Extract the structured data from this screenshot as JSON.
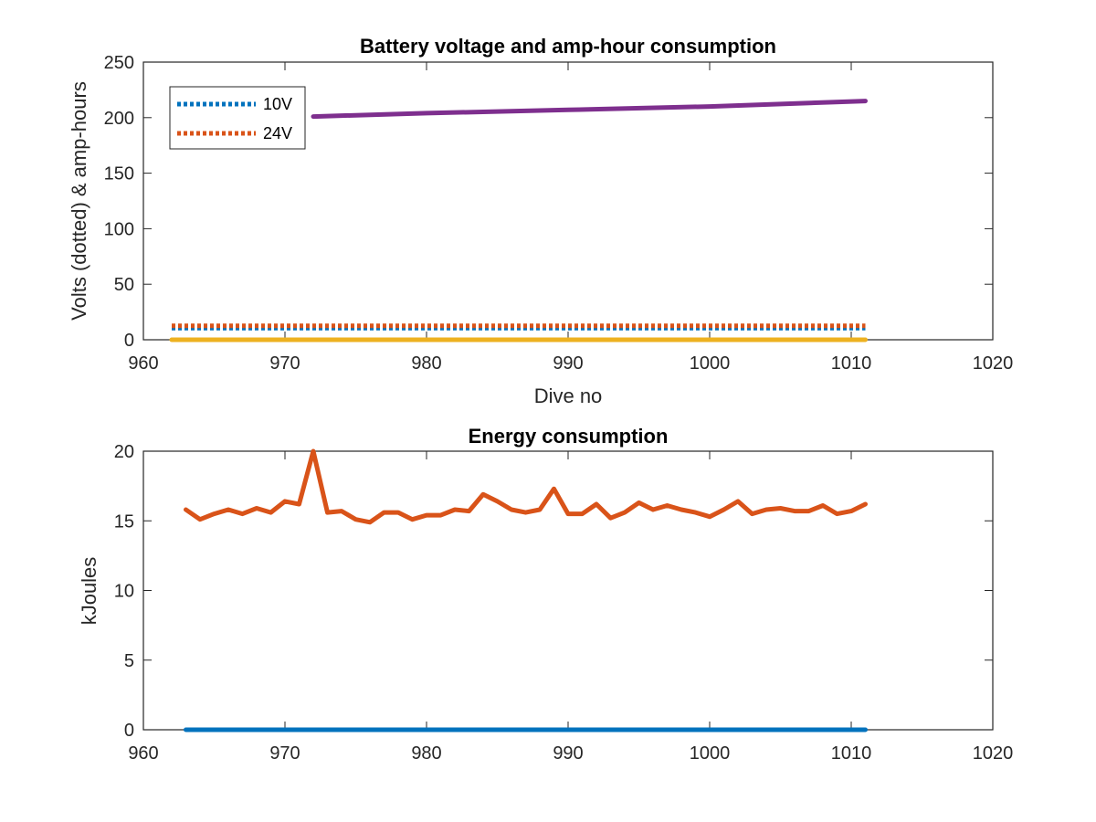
{
  "chart_data": [
    {
      "type": "line",
      "title": "Battery voltage and amp-hour consumption",
      "xlabel": "Dive no",
      "ylabel": "Volts (dotted) & amp-hours",
      "xlim": [
        960,
        1020
      ],
      "ylim": [
        0,
        250
      ],
      "xticks": [
        "960",
        "970",
        "980",
        "990",
        "1000",
        "1010",
        "1020"
      ],
      "yticks": [
        "0",
        "50",
        "100",
        "150",
        "200",
        "250"
      ],
      "grid": false,
      "legend_position": "top-left",
      "legend": [
        "10V",
        "24V"
      ],
      "series": [
        {
          "name": "10V",
          "style": "dotted",
          "color": "#0072BD",
          "x": [
            962,
            970,
            980,
            990,
            1000,
            1011
          ],
          "y": [
            10.5,
            10.5,
            10.5,
            10.5,
            10.5,
            10.5
          ]
        },
        {
          "name": "24V",
          "style": "dotted",
          "color": "#D95319",
          "x": [
            962,
            970,
            980,
            990,
            1000,
            1011
          ],
          "y": [
            12.5,
            12.5,
            12.5,
            12.5,
            12.5,
            12.5
          ]
        },
        {
          "style": "solid",
          "color": "#EDB120",
          "x": [
            962,
            1011
          ],
          "y": [
            0,
            0
          ]
        },
        {
          "style": "solid",
          "color": "#7E2F8E",
          "x": [
            972,
            980,
            990,
            1000,
            1011
          ],
          "y": [
            201,
            204,
            207,
            210,
            215
          ]
        }
      ]
    },
    {
      "type": "line",
      "title": "Energy consumption",
      "xlabel": "",
      "ylabel": "kJoules",
      "xlim": [
        960,
        1020
      ],
      "ylim": [
        0,
        20
      ],
      "xticks": [
        "960",
        "970",
        "980",
        "990",
        "1000",
        "1010",
        "1020"
      ],
      "yticks": [
        "0",
        "5",
        "10",
        "15",
        "20"
      ],
      "grid": false,
      "series": [
        {
          "style": "solid",
          "color": "#0072BD",
          "x": [
            963,
            1011
          ],
          "y": [
            0,
            0
          ]
        },
        {
          "style": "solid",
          "color": "#D95319",
          "x": [
            963,
            964,
            965,
            966,
            967,
            968,
            969,
            970,
            971,
            972,
            973,
            974,
            975,
            976,
            977,
            978,
            979,
            980,
            981,
            982,
            983,
            984,
            985,
            986,
            987,
            988,
            989,
            990,
            991,
            992,
            993,
            994,
            995,
            996,
            997,
            998,
            999,
            1000,
            1001,
            1002,
            1003,
            1004,
            1005,
            1006,
            1007,
            1008,
            1009,
            1010,
            1011
          ],
          "y": [
            15.8,
            15.1,
            15.5,
            15.8,
            15.5,
            15.9,
            15.6,
            16.4,
            16.2,
            20.0,
            15.6,
            15.7,
            15.1,
            14.9,
            15.6,
            15.6,
            15.1,
            15.4,
            15.4,
            15.8,
            15.7,
            16.9,
            16.4,
            15.8,
            15.6,
            15.8,
            17.3,
            15.5,
            15.5,
            16.2,
            15.2,
            15.6,
            16.3,
            15.8,
            16.1,
            15.8,
            15.6,
            15.3,
            15.8,
            16.4,
            15.5,
            15.8,
            15.9,
            15.7,
            15.7,
            16.1,
            15.5,
            15.7,
            16.2
          ]
        }
      ]
    }
  ]
}
